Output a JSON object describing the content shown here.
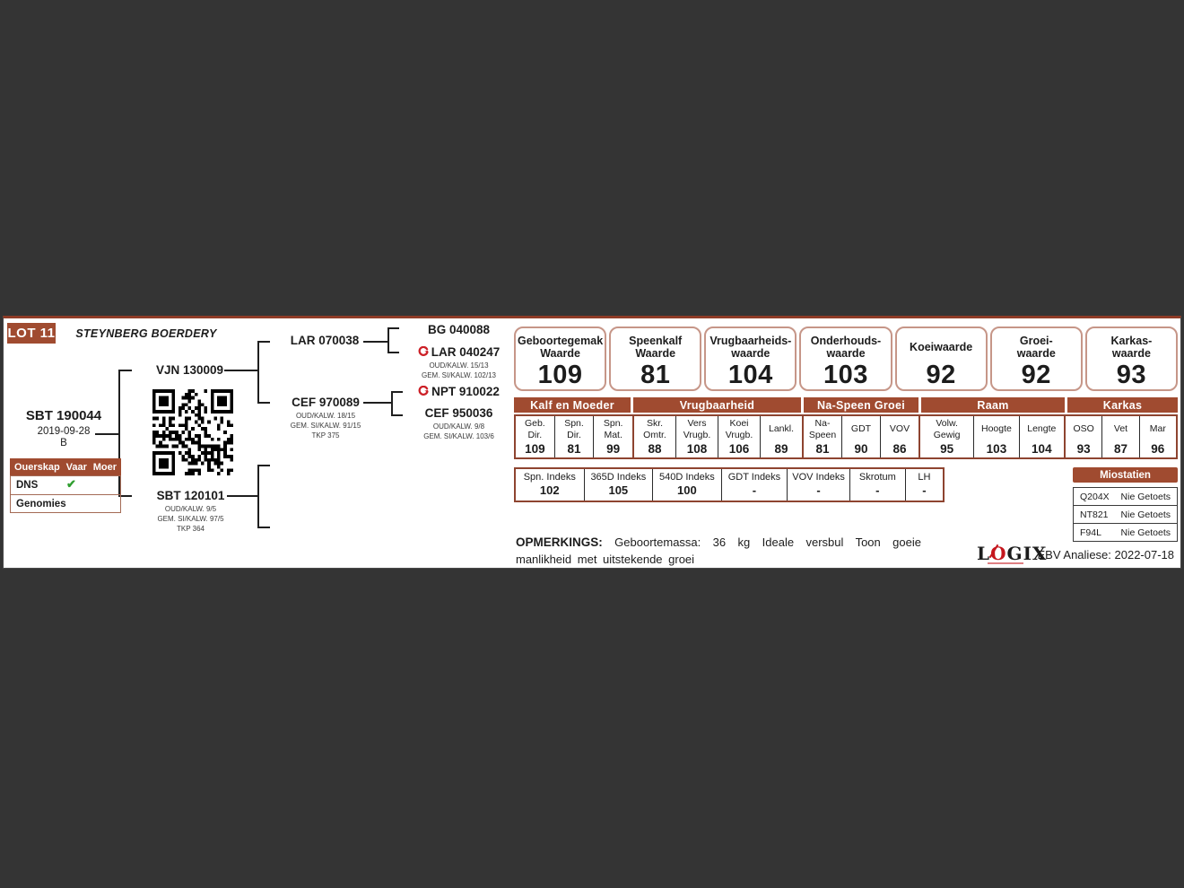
{
  "header": {
    "lot": "LOT 11",
    "farm": "STEYNBERG BOERDERY"
  },
  "pedigree": {
    "animal": {
      "id": "SBT 190044",
      "birth_date": "2019-09-28",
      "sex": "B"
    },
    "sire": {
      "id": "VJN 130009"
    },
    "dam": {
      "id": "SBT 120101",
      "detail1": "OUD/KALW. 9/5",
      "detail2": "GEM. SI/KALW. 97/5",
      "detail3": "TKP 364"
    },
    "sire_sire": {
      "id": "LAR 070038"
    },
    "sire_dam": {
      "id": "CEF 970089",
      "detail1": "OUD/KALW. 18/15",
      "detail2": "GEM. SI/KALW. 91/15",
      "detail3": "TKP 375"
    },
    "sire_sire_sire": {
      "id": "BG 040088"
    },
    "sire_sire_dam": {
      "id": "LAR 040247",
      "detail1": "OUD/KALW. 15/13",
      "detail2": "GEM. SI/KALW. 102/13"
    },
    "sire_dam_sire": {
      "id": "NPT 910022"
    },
    "sire_dam_dam": {
      "id": "CEF 950036",
      "detail1": "OUD/KALW. 9/8",
      "detail2": "GEM. SI/KALW. 103/6"
    }
  },
  "parentage": {
    "title": "Ouerskap",
    "col_sire": "Vaar",
    "col_dam": "Moer",
    "rows": [
      {
        "label": "DNS",
        "vaar": "✔",
        "moer": ""
      },
      {
        "label": "Genomies",
        "vaar": "",
        "moer": ""
      }
    ]
  },
  "value_boxes": [
    {
      "line1": "Geboortegemak",
      "line2": "Waarde",
      "value": "109"
    },
    {
      "line1": "Speenkalf",
      "line2": "Waarde",
      "value": "81"
    },
    {
      "line1": "Vrugbaarheids-",
      "line2": "waarde",
      "value": "104"
    },
    {
      "line1": "Onderhouds-",
      "line2": "waarde",
      "value": "103"
    },
    {
      "line1": "Koeiwaarde",
      "line2": "",
      "value": "92"
    },
    {
      "line1": "Groei-",
      "line2": "waarde",
      "value": "92"
    },
    {
      "line1": "Karkas-",
      "line2": "waarde",
      "value": "93"
    }
  ],
  "ebv_table": {
    "groups": [
      {
        "name": "Kalf en Moeder",
        "columns": [
          {
            "l1": "Geb.",
            "l2": "Dir.",
            "value": "109"
          },
          {
            "l1": "Spn.",
            "l2": "Dir.",
            "value": "81"
          },
          {
            "l1": "Spn.",
            "l2": "Mat.",
            "value": "99"
          }
        ]
      },
      {
        "name": "Vrugbaarheid",
        "columns": [
          {
            "l1": "Skr.",
            "l2": "Omtr.",
            "value": "88"
          },
          {
            "l1": "Vers",
            "l2": "Vrugb.",
            "value": "108"
          },
          {
            "l1": "Koei",
            "l2": "Vrugb.",
            "value": "106"
          },
          {
            "l1": "Lankl.",
            "l2": "",
            "value": "89"
          }
        ]
      },
      {
        "name": "Na-Speen Groei",
        "columns": [
          {
            "l1": "Na-",
            "l2": "Speen",
            "value": "81"
          },
          {
            "l1": "GDT",
            "l2": "",
            "value": "90"
          },
          {
            "l1": "VOV",
            "l2": "",
            "value": "86"
          }
        ]
      },
      {
        "name": "Raam",
        "columns": [
          {
            "l1": "Volw.",
            "l2": "Gewig",
            "value": "95"
          },
          {
            "l1": "Hoogte",
            "l2": "",
            "value": "103"
          },
          {
            "l1": "Lengte",
            "l2": "",
            "value": "104"
          }
        ]
      },
      {
        "name": "Karkas",
        "columns": [
          {
            "l1": "OSO",
            "l2": "",
            "value": "93"
          },
          {
            "l1": "Vet",
            "l2": "",
            "value": "87"
          },
          {
            "l1": "Mar",
            "l2": "",
            "value": "96"
          }
        ]
      }
    ]
  },
  "index_table": [
    {
      "label": "Spn. Indeks",
      "value": "102"
    },
    {
      "label": "365D Indeks",
      "value": "105"
    },
    {
      "label": "540D Indeks",
      "value": "100"
    },
    {
      "label": "GDT Indeks",
      "value": "-"
    },
    {
      "label": "VOV Indeks",
      "value": "-"
    },
    {
      "label": "Skrotum",
      "value": "-"
    },
    {
      "label": "LH",
      "value": "-"
    }
  ],
  "miostatien": {
    "title": "Miostatien",
    "rows": [
      {
        "gene": "Q204X",
        "result": "Nie Getoets"
      },
      {
        "gene": "NT821",
        "result": "Nie Getoets"
      },
      {
        "gene": "F94L",
        "result": "Nie Getoets"
      }
    ]
  },
  "remarks": {
    "label": "OPMERKINGS:",
    "text": "Geboortemassa: 36 kg Ideale versbul Toon goeie manlikheid met uitstekende groei"
  },
  "footer": {
    "logo_l": "L",
    "logo_o": "O",
    "logo_rest": "GIX",
    "analysis": "EBV Analiese: 2022-07-18"
  },
  "colors": {
    "accent_brown": "#a04b30",
    "box_border": "#c69688",
    "check_green": "#2f9e2f",
    "logo_red": "#c5161d",
    "background": "#343434"
  }
}
